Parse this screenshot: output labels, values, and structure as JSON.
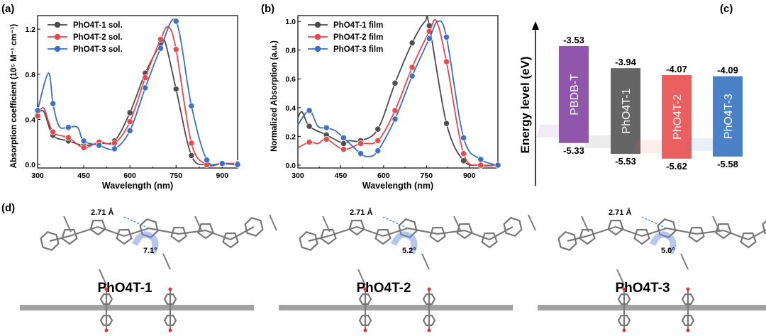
{
  "panel_labels": {
    "a": "(a)",
    "b": "(b)",
    "c": "(c)",
    "d": "(d)"
  },
  "colors": {
    "s1": "#4a4a4a",
    "s2": "#e8464a",
    "s3": "#3a6fc4"
  },
  "chart_data": [
    {
      "type": "line",
      "panel": "a",
      "xlabel": "Wavelength (nm)",
      "ylabel": "Absorption coefficient (10⁵ M⁻¹ cm⁻¹)",
      "xlim": [
        300,
        950
      ],
      "ylim": [
        -0.03,
        1.32
      ],
      "xticks": [
        "300",
        "450",
        "600",
        "750",
        "900"
      ],
      "yticks": [
        "0.0",
        "0.4",
        "0.8",
        "1.2"
      ],
      "legend_position": "top-left",
      "series": [
        {
          "name": "PhO4T-1 sol.",
          "color": "#4a4a4a",
          "x": [
            300,
            320,
            350,
            400,
            450,
            500,
            550,
            600,
            650,
            700,
            715,
            750,
            800,
            850,
            900,
            950
          ],
          "y": [
            0.44,
            0.47,
            0.26,
            0.21,
            0.17,
            0.19,
            0.21,
            0.46,
            0.81,
            1.07,
            1.08,
            0.67,
            0.08,
            0.0,
            0.01,
            0.01
          ]
        },
        {
          "name": "PhO4T-2 sol.",
          "color": "#e8464a",
          "x": [
            300,
            320,
            350,
            400,
            450,
            500,
            550,
            600,
            650,
            700,
            725,
            750,
            800,
            850,
            900,
            950
          ],
          "y": [
            0.43,
            0.5,
            0.29,
            0.24,
            0.15,
            0.2,
            0.19,
            0.38,
            0.77,
            1.11,
            1.22,
            1.02,
            0.19,
            0.0,
            0.01,
            0.01
          ]
        },
        {
          "name": "PhO4T-3 sol.",
          "color": "#3a6fc4",
          "x": [
            300,
            335,
            350,
            370,
            400,
            430,
            450,
            500,
            550,
            600,
            650,
            700,
            750,
            800,
            850,
            900,
            950
          ],
          "y": [
            0.48,
            0.81,
            0.54,
            0.34,
            0.33,
            0.33,
            0.21,
            0.17,
            0.14,
            0.3,
            0.68,
            1.03,
            1.27,
            0.52,
            0.04,
            0.01,
            0.0
          ]
        }
      ]
    },
    {
      "type": "line",
      "panel": "b",
      "xlabel": "Wavelength (nm)",
      "ylabel": "Normalized Absorption (a.u.)",
      "xlim": [
        300,
        1000
      ],
      "ylim": [
        -0.02,
        1.04
      ],
      "xticks": [
        "300",
        "450",
        "600",
        "750",
        "900"
      ],
      "yticks": [
        "0.0",
        "0.2",
        "0.4",
        "0.6",
        "0.8",
        "1.0"
      ],
      "legend_position": "top-left",
      "series": [
        {
          "name": "PhO4T-1 film",
          "color": "#4a4a4a",
          "x": [
            300,
            315,
            340,
            400,
            460,
            480,
            520,
            580,
            640,
            700,
            745,
            760,
            820,
            880,
            940,
            1000
          ],
          "y": [
            0.33,
            0.37,
            0.27,
            0.21,
            0.15,
            0.17,
            0.17,
            0.25,
            0.57,
            0.85,
            1.0,
            0.97,
            0.29,
            0.03,
            0.0,
            0.0
          ]
        },
        {
          "name": "PhO4T-2 film",
          "color": "#e8464a",
          "x": [
            300,
            340,
            370,
            400,
            460,
            520,
            580,
            640,
            700,
            760,
            785,
            820,
            880,
            940,
            1000
          ],
          "y": [
            0.12,
            0.16,
            0.15,
            0.18,
            0.11,
            0.15,
            0.17,
            0.38,
            0.68,
            0.93,
            1.0,
            0.72,
            0.08,
            0.0,
            0.0
          ]
        },
        {
          "name": "PhO4T-3 film",
          "color": "#3a6fc4",
          "x": [
            300,
            340,
            370,
            400,
            430,
            460,
            520,
            550,
            580,
            640,
            700,
            760,
            790,
            820,
            880,
            940,
            1000
          ],
          "y": [
            0.28,
            0.38,
            0.27,
            0.26,
            0.24,
            0.19,
            0.08,
            0.06,
            0.1,
            0.32,
            0.62,
            0.88,
            1.0,
            0.89,
            0.19,
            0.04,
            0.0
          ]
        }
      ]
    },
    {
      "type": "bar",
      "panel": "c",
      "ylabel": "Energy level (eV)",
      "categories": [
        "PBDB-T",
        "PhO4T-1",
        "PhO4T-2",
        "PhO4T-3"
      ],
      "lumo": [
        -3.53,
        -3.94,
        -4.07,
        -4.09
      ],
      "homo": [
        -5.33,
        -5.53,
        -5.62,
        -5.58
      ],
      "lumo_labels": [
        "-3.53",
        "-3.94",
        "-4.07",
        "-4.09"
      ],
      "homo_labels": [
        "-5.33",
        "-5.53",
        "-5.62",
        "-5.58"
      ],
      "colors": [
        "#9056ab",
        "#656565",
        "#ea5f60",
        "#4a80c6"
      ]
    }
  ],
  "structures": [
    {
      "name": "PhO4T-1",
      "distance": "2.71 Å",
      "angle": "7.1°"
    },
    {
      "name": "PhO4T-2",
      "distance": "2.71 Å",
      "angle": "5.2°"
    },
    {
      "name": "PhO4T-3",
      "distance": "2.71 Å",
      "angle": "5.0°"
    }
  ]
}
